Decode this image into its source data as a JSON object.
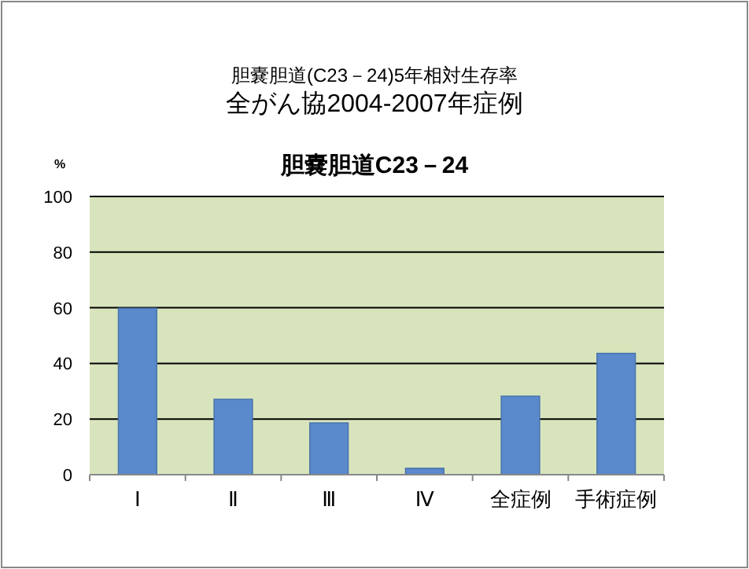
{
  "chart_data": {
    "type": "bar",
    "title": "胆嚢胆道(C23－24)5年相対生存率",
    "subtitle": "全がん協2004-2007年症例",
    "annotations": [
      "胆嚢胆道C23－24"
    ],
    "ylabel": "%",
    "categories": [
      "Ⅰ",
      "Ⅱ",
      "Ⅲ",
      "Ⅳ",
      "全症例",
      "手術症例"
    ],
    "values": [
      59.8,
      27.1,
      18.6,
      2.3,
      28.2,
      43.6
    ],
    "color": "#5a8acb",
    "ylim": [
      0,
      100
    ],
    "yticks": [
      0,
      20,
      40,
      60,
      80,
      100
    ],
    "grid": "y"
  }
}
